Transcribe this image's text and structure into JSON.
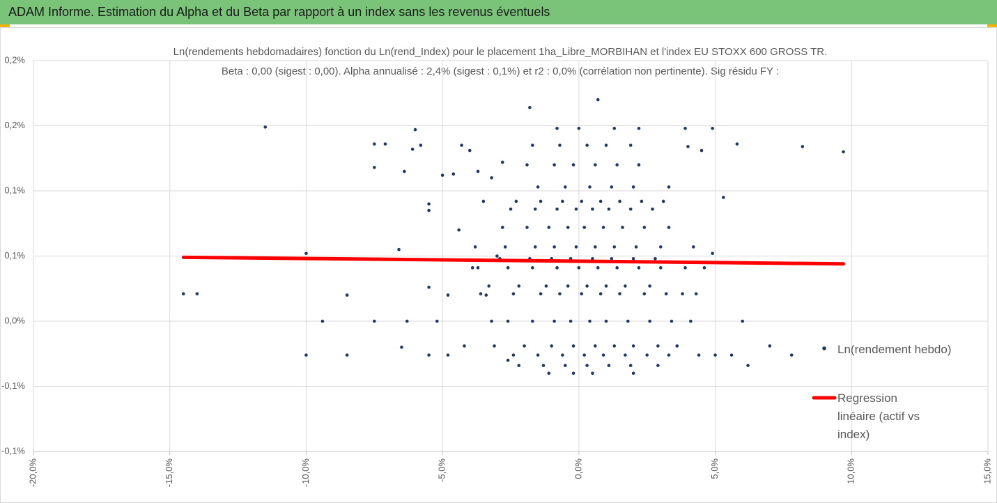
{
  "header": {
    "title": "ADAM Informe. Estimation du Alpha et du Beta par rapport à un index sans les revenus éventuels"
  },
  "chart_data": {
    "type": "scatter",
    "title": "Ln(rendements hebdomadaires) fonction du Ln(rend_Index) pour le placement 1ha_Libre_MORBIHAN et l'index EU STOXX 600 GROSS TR.",
    "subtitle": "Beta : 0,00 (sigest : 0,00). Alpha annualisé : 2,4% (sigest : 0,1%) et r2 : 0,0% (corrélation non pertinente). Sig résidu FY :",
    "xlim": [
      -20,
      15
    ],
    "xticks": [
      {
        "value": -20,
        "label": "-20,0%"
      },
      {
        "value": -15,
        "label": "-15,0%"
      },
      {
        "value": -10,
        "label": "-10,0%"
      },
      {
        "value": -5,
        "label": "-5,0%"
      },
      {
        "value": 0,
        "label": "0,0%"
      },
      {
        "value": 5,
        "label": "5,0%"
      },
      {
        "value": 10,
        "label": "10,0%"
      },
      {
        "value": 15,
        "label": "15,0%"
      }
    ],
    "ylim": [
      -0.1,
      0.2
    ],
    "yticks": [
      {
        "value": -0.1,
        "label": "-0,1%"
      },
      {
        "value": -0.05,
        "label": "-0,1%"
      },
      {
        "value": 0,
        "label": "0,0%"
      },
      {
        "value": 0.05,
        "label": "0,1%"
      },
      {
        "value": 0.1,
        "label": "0,1%"
      },
      {
        "value": 0.15,
        "label": "0,2%"
      },
      {
        "value": 0.2,
        "label": "0,2%"
      }
    ],
    "grid": true,
    "legend": "right",
    "series": [
      {
        "name": "Ln(rendement hebdo)",
        "type": "scatter",
        "color": "#203864",
        "x": [
          -11.5,
          -14.5,
          -14,
          -10,
          -10,
          -9.4,
          -8.5,
          -8.5,
          -7.5,
          -7.5,
          -7.5,
          -7.1,
          -6.6,
          -6.5,
          -6.4,
          -6.3,
          -6.1,
          -6.0,
          -5.8,
          -5.5,
          -5.5,
          -5.5,
          -5.5,
          -5.2,
          -5,
          -4.8,
          -4.8,
          -4.6,
          -4.4,
          -4.3,
          -4.2,
          -4,
          -3.9,
          -3.7,
          -3.5,
          -3.4,
          -3.2,
          -3.2,
          -3,
          -2.8,
          -2.6,
          8.2,
          9.7,
          5.8,
          5.3,
          4.9,
          4.5,
          4.0,
          3.9,
          3.8,
          6.0,
          6.2,
          7.0,
          7.8,
          4.9,
          5.0,
          5.6,
          0.7,
          -1.8,
          -2.6,
          -1.7,
          -0.9,
          -0.3,
          0.4,
          1.0,
          1.8,
          2.6,
          3.4,
          4.1,
          -3.1,
          -2.0,
          -1.0,
          -0.2,
          0.6,
          1.3,
          2.0,
          2.9,
          3.6,
          -2.4,
          -1.5,
          -0.6,
          0.2,
          0.9,
          1.7,
          2.5,
          3.3,
          4.4,
          -2.2,
          -1.3,
          -0.5,
          0.3,
          1.1,
          1.9,
          2.9,
          -1.1,
          -0.2,
          0.5,
          2.0,
          -3.6,
          -2.4,
          -1.4,
          -0.7,
          0.1,
          0.8,
          1.5,
          2.4,
          3.2,
          4.3,
          -3.3,
          -2.2,
          -1.2,
          -0.4,
          0.3,
          1.0,
          1.7,
          2.6,
          -3.7,
          -2.6,
          -1.7,
          -0.8,
          0.0,
          0.7,
          1.4,
          2.2,
          3.0,
          3.9,
          4.6,
          -2.9,
          -1.8,
          -1.0,
          -0.3,
          0.5,
          1.2,
          2.0,
          2.8,
          -3.8,
          -2.7,
          -1.6,
          -0.9,
          -0.1,
          0.6,
          1.3,
          2.1,
          3.0,
          4.2,
          -2.8,
          -1.9,
          -1.1,
          -0.4,
          0.2,
          0.9,
          1.6,
          2.4,
          3.3,
          -2.5,
          -1.6,
          -0.8,
          -0.1,
          0.5,
          1.1,
          1.9,
          2.7,
          -2.3,
          -1.4,
          -0.6,
          0.1,
          0.8,
          1.5,
          2.3,
          3.1,
          -1.5,
          -0.5,
          0.4,
          1.2,
          2.0,
          3.3,
          -1.9,
          -0.9,
          -0.2,
          0.6,
          1.4,
          2.2,
          -1.7,
          -0.7,
          0.3,
          1.0,
          1.9,
          -0.8,
          0.0,
          1.3,
          2.2
        ],
        "values": [
          0.149,
          0.021,
          0.021,
          0.052,
          -0.026,
          0,
          0.02,
          -0.026,
          0,
          0.136,
          0.118,
          0.136,
          0.055,
          -0.02,
          0.115,
          0,
          0.132,
          0.147,
          0.135,
          0.09,
          0.085,
          0.026,
          -0.026,
          0,
          0.112,
          0.02,
          -0.026,
          0.113,
          0.07,
          0.135,
          -0.019,
          0.131,
          0.041,
          0.115,
          0.092,
          0.02,
          0,
          0.11,
          0.05,
          0.122,
          -0.03,
          0.134,
          0.13,
          0.136,
          0.095,
          0.148,
          0.131,
          0.134,
          0.148,
          0.021,
          0,
          -0.034,
          -0.019,
          -0.026,
          0.052,
          -0.026,
          -0.026,
          0.17,
          0.164,
          0,
          0,
          0,
          0,
          0,
          0,
          0,
          0,
          0,
          0,
          -0.019,
          -0.019,
          -0.019,
          -0.019,
          -0.019,
          -0.019,
          -0.019,
          -0.019,
          -0.019,
          -0.026,
          -0.026,
          -0.026,
          -0.026,
          -0.026,
          -0.026,
          -0.026,
          -0.026,
          -0.026,
          -0.034,
          -0.034,
          -0.034,
          -0.034,
          -0.034,
          -0.034,
          -0.034,
          -0.04,
          -0.04,
          -0.04,
          -0.04,
          0.021,
          0.021,
          0.021,
          0.021,
          0.021,
          0.021,
          0.021,
          0.021,
          0.021,
          0.021,
          0.027,
          0.027,
          0.027,
          0.027,
          0.027,
          0.027,
          0.027,
          0.027,
          0.041,
          0.041,
          0.041,
          0.041,
          0.041,
          0.041,
          0.041,
          0.041,
          0.041,
          0.041,
          0.041,
          0.048,
          0.048,
          0.048,
          0.048,
          0.048,
          0.048,
          0.048,
          0.048,
          0.057,
          0.057,
          0.057,
          0.057,
          0.057,
          0.057,
          0.057,
          0.057,
          0.057,
          0.057,
          0.072,
          0.072,
          0.072,
          0.072,
          0.072,
          0.072,
          0.072,
          0.072,
          0.072,
          0.086,
          0.086,
          0.086,
          0.086,
          0.086,
          0.086,
          0.086,
          0.086,
          0.092,
          0.092,
          0.092,
          0.092,
          0.092,
          0.092,
          0.092,
          0.092,
          0.103,
          0.103,
          0.103,
          0.103,
          0.103,
          0.103,
          0.12,
          0.12,
          0.12,
          0.12,
          0.12,
          0.12,
          0.135,
          0.135,
          0.135,
          0.135,
          0.135,
          0.148,
          0.148,
          0.148,
          0.148
        ]
      },
      {
        "name": "Regression linéaire (actif vs index)",
        "type": "line",
        "color": "#ff0000",
        "x": [
          -14.5,
          9.7
        ],
        "values": [
          0.049,
          0.044
        ]
      }
    ]
  }
}
